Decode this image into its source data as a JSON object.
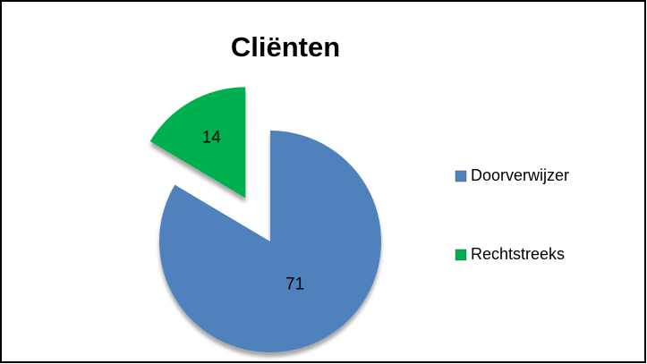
{
  "chart_data": {
    "type": "pie",
    "title": "Cliënten",
    "categories": [
      "Doorverwijzer",
      "Rechtstreeks"
    ],
    "values": [
      71,
      14
    ],
    "colors": [
      "#4f81bd",
      "#00b050"
    ],
    "exploded": [
      false,
      true
    ],
    "legend": "right"
  }
}
